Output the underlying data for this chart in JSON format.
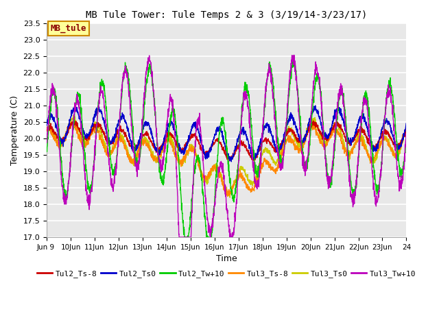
{
  "title": "MB Tule Tower: Tule Temps 2 & 3 (3/19/14-3/23/17)",
  "xlabel": "Time",
  "ylabel": "Temperature (C)",
  "ylim": [
    17.0,
    23.5
  ],
  "yticks": [
    17.0,
    17.5,
    18.0,
    18.5,
    19.0,
    19.5,
    20.0,
    20.5,
    21.0,
    21.5,
    22.0,
    22.5,
    23.0,
    23.5
  ],
  "line_colors": [
    "#cc0000",
    "#0000cc",
    "#00cc00",
    "#ff8800",
    "#cccc00",
    "#bb00bb"
  ],
  "line_labels": [
    "Tul2_Ts-8",
    "Tul2_Ts0",
    "Tul2_Tw+10",
    "Tul3_Ts-8",
    "Tul3_Ts0",
    "Tul3_Tw+10"
  ],
  "plot_bg_color": "#e8e8e8",
  "annotation_label": "MB_tule",
  "annotation_bg": "#ffff99",
  "annotation_border": "#cc8800",
  "annotation_text_color": "#8b0000",
  "seed": 12345
}
